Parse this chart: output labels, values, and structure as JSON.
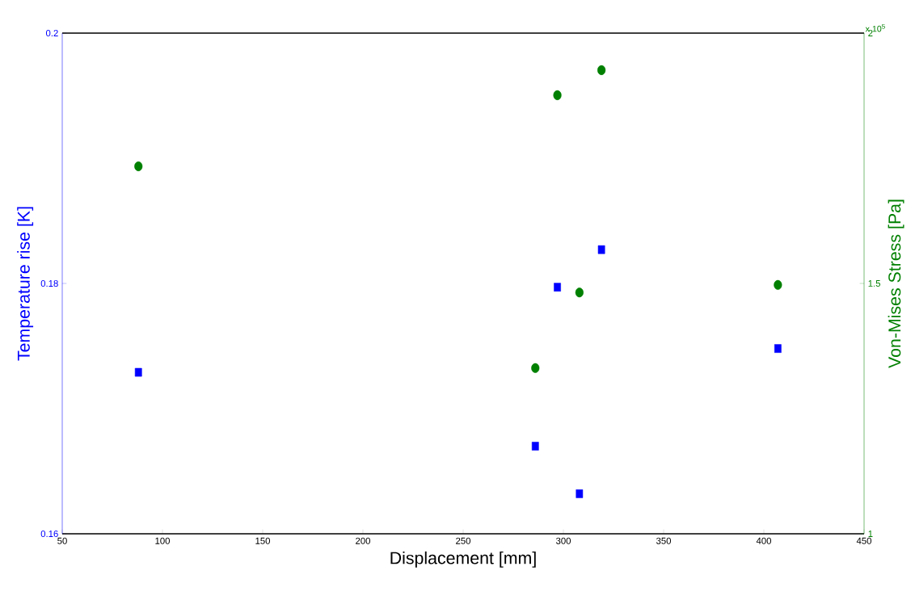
{
  "chart_data": {
    "type": "scatter",
    "xlabel": "Displacement [mm]",
    "ylabel": "Temperature rise [K]",
    "y2label": "Von-Mises Stress [Pa]",
    "x": [
      88,
      286,
      297,
      308,
      319,
      407
    ],
    "xlim": [
      50,
      450
    ],
    "xticks": [
      50,
      100,
      150,
      200,
      250,
      300,
      350,
      400,
      450
    ],
    "ylim": [
      0.16,
      0.2
    ],
    "yticks": [
      0.16,
      0.18,
      0.2
    ],
    "y2lim": [
      1,
      2
    ],
    "y2ticks": [
      1,
      1.5,
      2
    ],
    "annotations": [
      "x 10$^{5}$"
    ],
    "series": [
      {
        "color": "#0000ff",
        "marker": "square",
        "values": [
          0.1729,
          0.167,
          0.1797,
          0.1632,
          0.1827,
          0.1748
        ]
      },
      {
        "color": "#008000",
        "marker": "circle",
        "axis": "y2",
        "values": [
          1.734,
          1.331,
          1.876,
          1.482,
          1.926,
          1.497
        ]
      }
    ]
  }
}
